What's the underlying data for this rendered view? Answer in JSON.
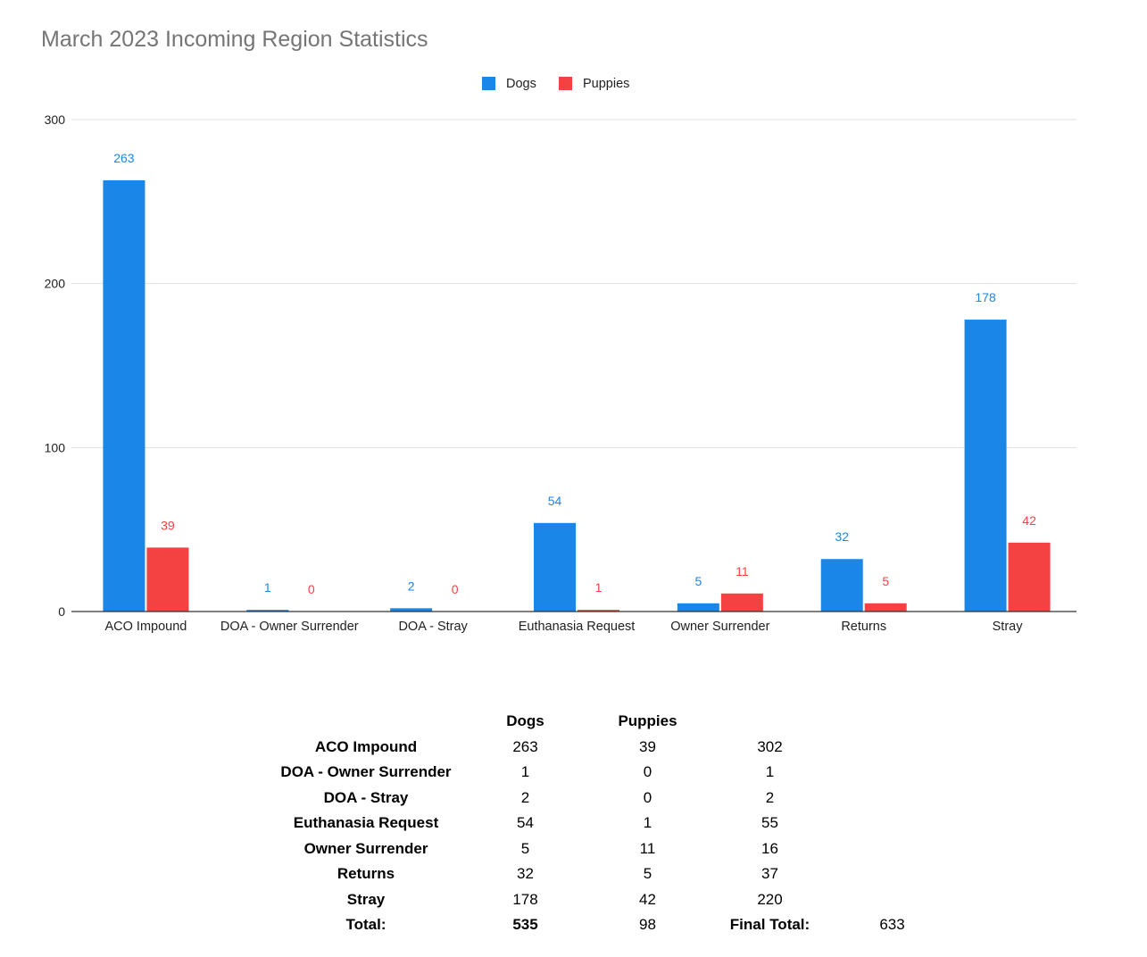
{
  "chart_data": {
    "type": "bar",
    "title": "March 2023 Incoming Region Statistics",
    "categories": [
      "ACO Impound",
      "DOA - Owner Surrender",
      "DOA - Stray",
      "Euthanasia Request",
      "Owner Surrender",
      "Returns",
      "Stray"
    ],
    "series": [
      {
        "name": "Dogs",
        "color": "#1a86e8",
        "values": [
          263,
          1,
          2,
          54,
          5,
          32,
          178
        ]
      },
      {
        "name": "Puppies",
        "color": "#f44242",
        "values": [
          39,
          0,
          0,
          1,
          11,
          5,
          42
        ]
      }
    ],
    "ylim": [
      0,
      300
    ],
    "yticks": [
      0,
      100,
      200,
      300
    ],
    "grid": true,
    "legend_position": "top-center",
    "data_labels": true
  },
  "table": {
    "headers": [
      "",
      "Dogs",
      "Puppies",
      "",
      ""
    ],
    "rows": [
      [
        "ACO Impound",
        "263",
        "39",
        "302",
        ""
      ],
      [
        "DOA - Owner Surrender",
        "1",
        "0",
        "1",
        ""
      ],
      [
        "DOA - Stray",
        "2",
        "0",
        "2",
        ""
      ],
      [
        "Euthanasia Request",
        "54",
        "1",
        "55",
        ""
      ],
      [
        "Owner Surrender",
        "5",
        "11",
        "16",
        ""
      ],
      [
        "Returns",
        "32",
        "5",
        "37",
        ""
      ],
      [
        "Stray",
        "178",
        "42",
        "220",
        ""
      ]
    ],
    "total_row": [
      "Total:",
      "535",
      "98",
      "Final Total:",
      "633"
    ]
  }
}
